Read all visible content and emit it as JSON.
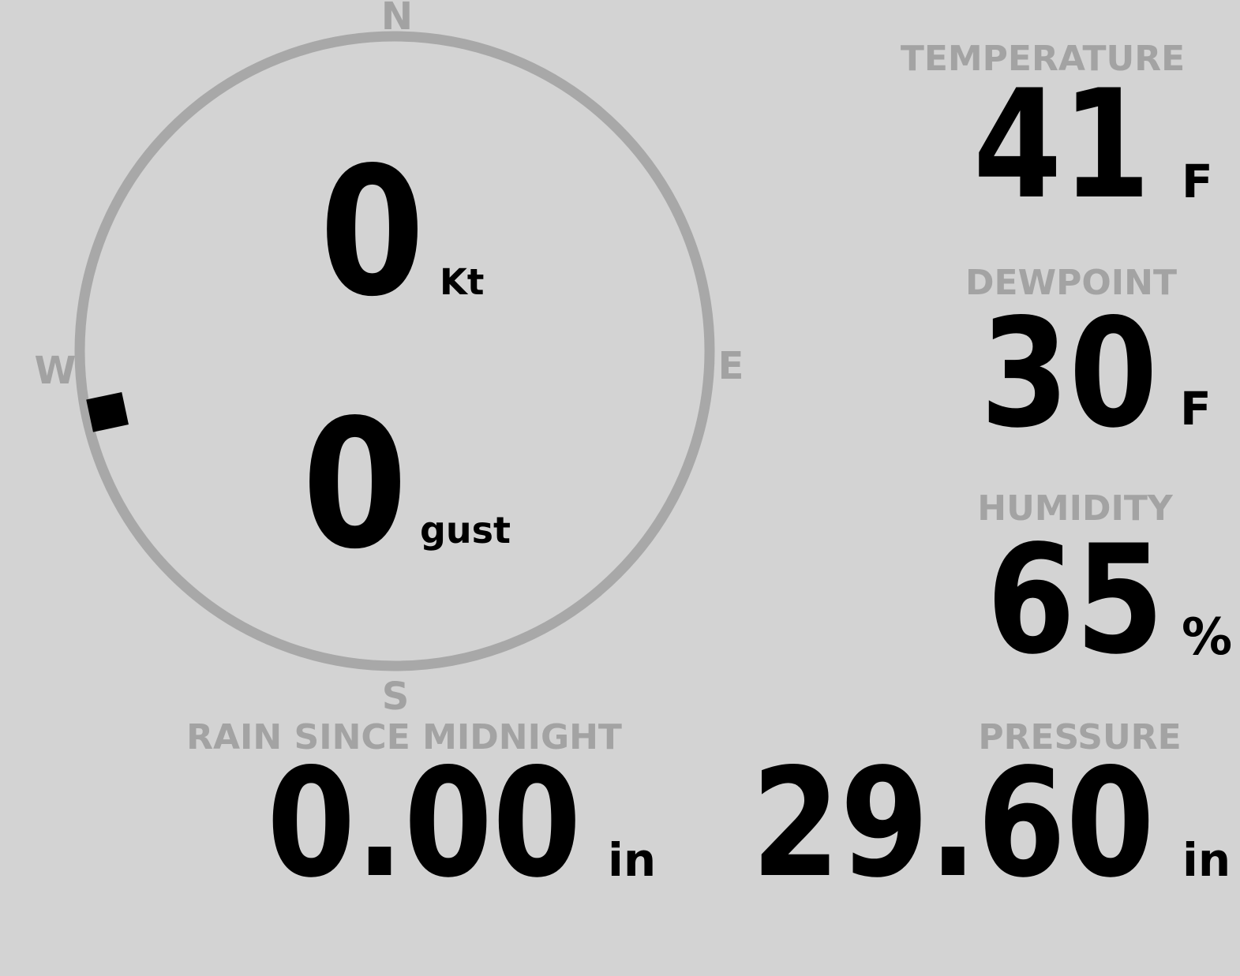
{
  "background": "#d3d3d3",
  "colors": {
    "label_gray": "#a3a3a3",
    "ring_gray": "#a8a8a8",
    "value_black": "#000000",
    "marker_black": "#000000"
  },
  "compass": {
    "cardinal": {
      "north": "N",
      "east": "E",
      "south": "S",
      "west": "W"
    },
    "wind_speed": {
      "value": "0",
      "unit": "Kt"
    },
    "wind_gust": {
      "value": "0",
      "unit": "gust"
    },
    "wind_direction_deg": 258
  },
  "metrics": {
    "temperature": {
      "label": "TEMPERATURE",
      "value": "41",
      "unit": "F"
    },
    "dewpoint": {
      "label": "DEWPOINT",
      "value": "30",
      "unit": "F"
    },
    "humidity": {
      "label": "HUMIDITY",
      "value": "65",
      "unit": "%"
    },
    "rain_since_midnight": {
      "label": "RAIN SINCE MIDNIGHT",
      "value": "0.00",
      "unit": "in"
    },
    "pressure": {
      "label": "PRESSURE",
      "value": "29.60",
      "unit": "in"
    }
  }
}
